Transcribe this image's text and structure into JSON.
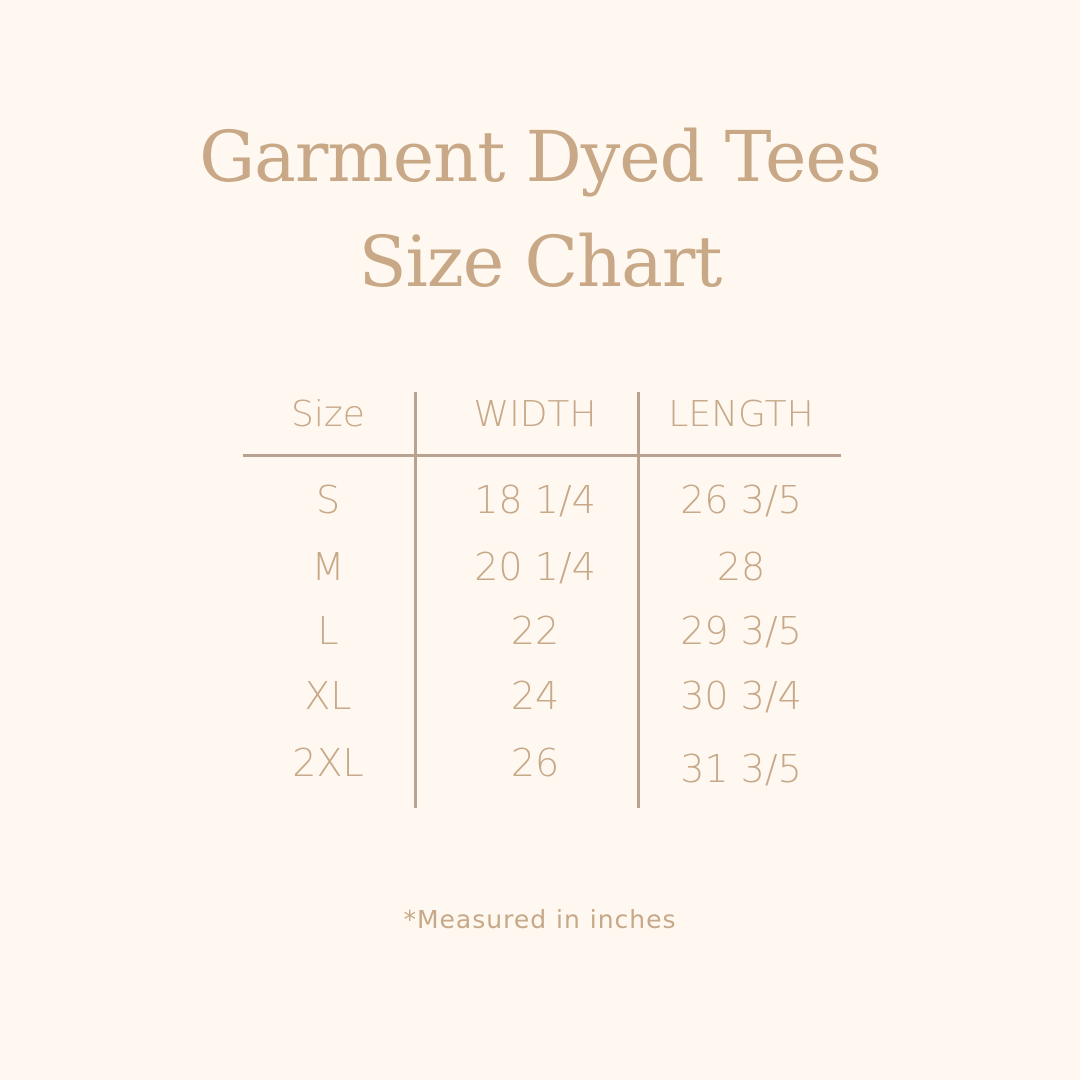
{
  "title_line1": "Garment Dyed Tees",
  "title_line2": "Size Chart",
  "table": {
    "headers": [
      "Size",
      "WIDTH",
      "LENGTH"
    ],
    "rows": [
      [
        "S",
        "18 1/4",
        "26 3/5"
      ],
      [
        "M",
        "20 1/4",
        "28"
      ],
      [
        "L",
        "22",
        "29 3/5"
      ],
      [
        "XL",
        "24",
        "30 3/4"
      ],
      [
        "2XL",
        "26",
        "31 3/5"
      ]
    ]
  },
  "footnote": "*Measured in inches",
  "colors": {
    "background": "#fef8f0",
    "text": "#c7a888",
    "lines": "#b9a290"
  }
}
